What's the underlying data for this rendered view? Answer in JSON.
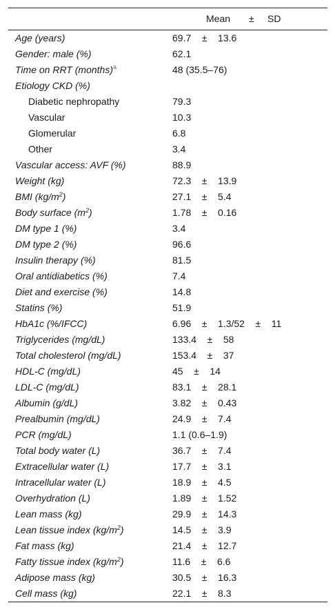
{
  "header": {
    "mean": "Mean",
    "pm": "±",
    "sd": "SD"
  },
  "rows": [
    {
      "label": "Age (years)",
      "value": "69.7    ±    13.6"
    },
    {
      "label": "Gender: male (%)",
      "value": "62.1"
    },
    {
      "label": "Time on RRT (months)",
      "footnote": "a",
      "value": "48 (35.5–76)"
    },
    {
      "label": "Etiology CKD (%)",
      "value": ""
    },
    {
      "label": "Diabetic nephropathy",
      "sub": true,
      "value": "79.3"
    },
    {
      "label": "Vascular",
      "sub": true,
      "value": "10.3"
    },
    {
      "label": "Glomerular",
      "sub": true,
      "value": "6.8"
    },
    {
      "label": "Other",
      "sub": true,
      "value": "3.4"
    },
    {
      "label": "Vascular access: AVF (%)",
      "value": "88.9"
    },
    {
      "label": "Weight (kg)",
      "value": "72.3    ±    13.9"
    },
    {
      "label": "BMI (kg/m",
      "sup": "2",
      "suffix": ")",
      "value": "27.1    ±    5.4"
    },
    {
      "label": "Body surface (m",
      "sup": "2",
      "suffix": ")",
      "value": "1.78    ±    0.16"
    },
    {
      "label": "DM type 1 (%)",
      "value": "3.4"
    },
    {
      "label": "DM type 2 (%)",
      "value": "96.6"
    },
    {
      "label": "Insulin therapy (%)",
      "value": "81.5"
    },
    {
      "label": "Oral antidiabetics (%)",
      "value": "7.4"
    },
    {
      "label": "Diet and exercise (%)",
      "value": "14.8"
    },
    {
      "label": "Statins (%)",
      "value": "51.9"
    },
    {
      "label": "HbA1c (%/IFCC)",
      "value": "6.96    ±    1.3/52    ±    11"
    },
    {
      "label": "Triglycerides (mg/dL)",
      "value": "133.4    ±    58"
    },
    {
      "label": "Total cholesterol (mg/dL)",
      "value": "153.4    ±    37"
    },
    {
      "label": "HDL-C (mg/dL)",
      "value": "45    ±    14"
    },
    {
      "label": "LDL-C (mg/dL)",
      "value": "83.1    ±    28.1"
    },
    {
      "label": "Albumin (g/dL)",
      "value": "3.82    ±    0.43"
    },
    {
      "label": "Prealbumin (mg/dL)",
      "value": "24.9    ±    7.4"
    },
    {
      "label": "PCR (mg/dL)",
      "value": "1.1 (0.6–1.9)"
    },
    {
      "label": "Total body water (L)",
      "value": "36.7    ±    7.4"
    },
    {
      "label": "Extracellular water (L)",
      "value": "17.7    ±    3.1"
    },
    {
      "label": "Intracellular water (L)",
      "value": "18.9    ±    4.5"
    },
    {
      "label": "Overhydration (L)",
      "value": "1.89    ±    1.52"
    },
    {
      "label": "Lean mass (kg)",
      "value": "29.9    ±    14.3"
    },
    {
      "label": "Lean tissue index (kg/m",
      "sup": "2",
      "suffix": ")",
      "value": "14.5    ±    3.9"
    },
    {
      "label": "Fat mass (kg)",
      "value": "21.4    ±    12.7"
    },
    {
      "label": "Fatty tissue index (kg/m",
      "sup": "2",
      "suffix": ")",
      "value": "11.6    ±    6.6"
    },
    {
      "label": "Adipose mass (kg)",
      "value": "30.5    ±    16.3"
    },
    {
      "label": "Cell mass (kg)",
      "value": "22.1    ±    8.3"
    }
  ]
}
